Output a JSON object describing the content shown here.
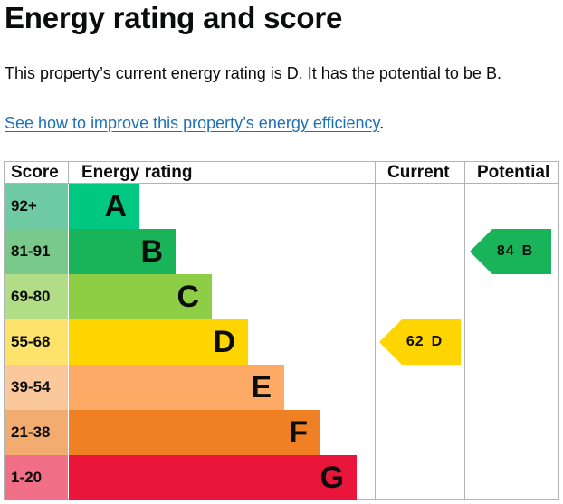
{
  "heading": "Energy rating and score",
  "summary": "This property’s current energy rating is D. It has the potential to be B.",
  "improve_link": "See how to improve this property’s energy efficiency",
  "improve_link_suffix": ".",
  "table": {
    "headers": {
      "score": "Score",
      "rating": "Energy rating",
      "current": "Current",
      "potential": "Potential"
    },
    "bands": [
      {
        "score": "92+",
        "letter": "A",
        "bar_color": "#00c781",
        "score_bg": "#6fcba4"
      },
      {
        "score": "81-91",
        "letter": "B",
        "bar_color": "#19b459",
        "score_bg": "#79c98a"
      },
      {
        "score": "69-80",
        "letter": "C",
        "bar_color": "#8dce46",
        "score_bg": "#b1dd86"
      },
      {
        "score": "55-68",
        "letter": "D",
        "bar_color": "#ffd500",
        "score_bg": "#fde36c"
      },
      {
        "score": "39-54",
        "letter": "E",
        "bar_color": "#fcaa65",
        "score_bg": "#fbc89c"
      },
      {
        "score": "21-38",
        "letter": "F",
        "bar_color": "#ef8023",
        "score_bg": "#f2ac70"
      },
      {
        "score": "1-20",
        "letter": "G",
        "bar_color": "#e9153b",
        "score_bg": "#f17088"
      }
    ],
    "current": {
      "score": "62",
      "band": "D",
      "color": "#ffd500"
    },
    "potential": {
      "score": "84",
      "band": "B",
      "color": "#19b459"
    }
  }
}
